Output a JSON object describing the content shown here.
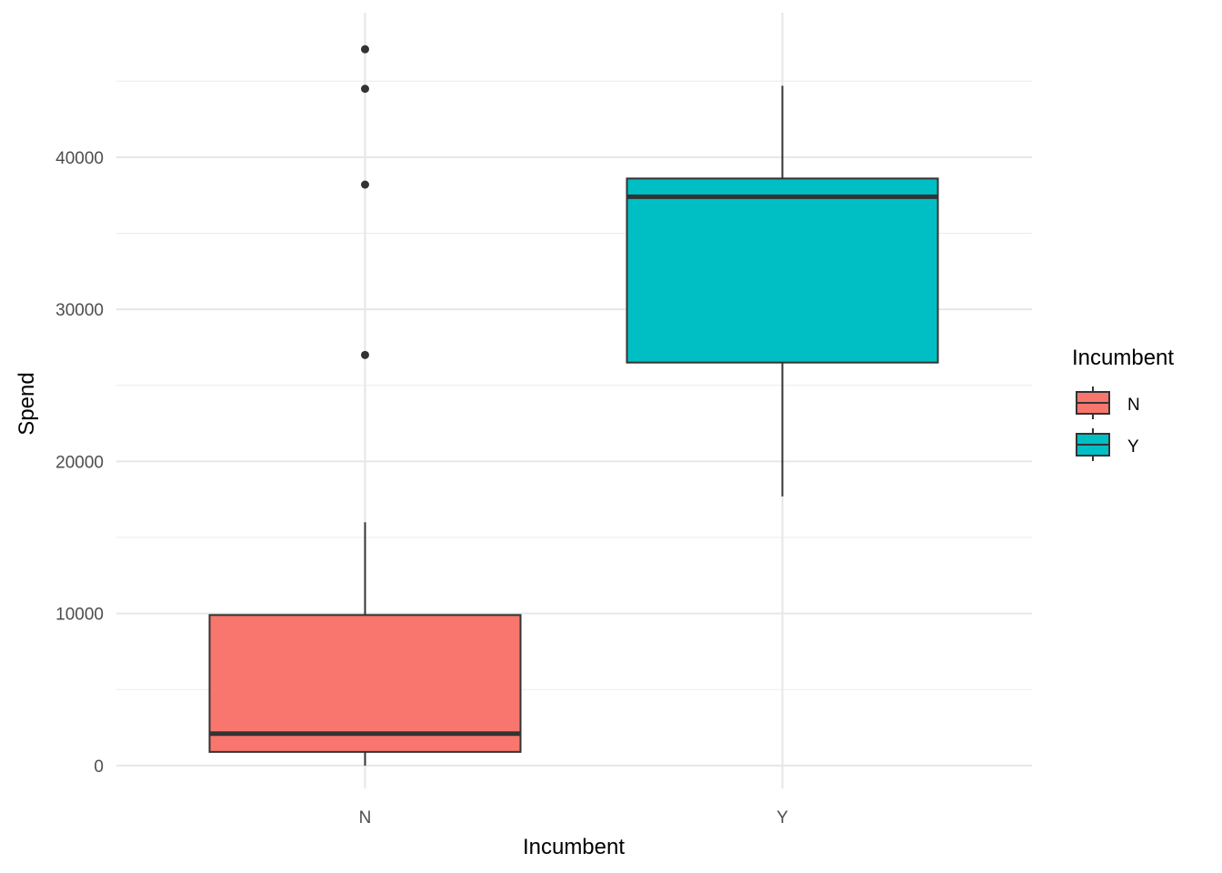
{
  "chart_data": {
    "type": "box",
    "xlabel": "Incumbent",
    "ylabel": "Spend",
    "ylim": [
      -1500,
      49500
    ],
    "y_ticks": [
      0,
      10000,
      20000,
      30000,
      40000
    ],
    "y_tick_labels": [
      "0",
      "10000",
      "20000",
      "30000",
      "40000"
    ],
    "categories": [
      "N",
      "Y"
    ],
    "grid": true,
    "legend": {
      "title": "Incumbent",
      "position": "right",
      "entries": [
        "N",
        "Y"
      ]
    },
    "colors": {
      "N": "#F8766D",
      "Y": "#00BFC4",
      "outline": "#333333"
    },
    "boxes": [
      {
        "category": "N",
        "whisker_low": 0,
        "q1": 900,
        "median": 2100,
        "q3": 9900,
        "whisker_high": 16000,
        "outliers": [
          27000,
          38200,
          44500,
          47100
        ]
      },
      {
        "category": "Y",
        "whisker_low": 17700,
        "q1": 26500,
        "median": 37400,
        "q3": 38600,
        "whisker_high": 44700,
        "outliers": []
      }
    ]
  }
}
